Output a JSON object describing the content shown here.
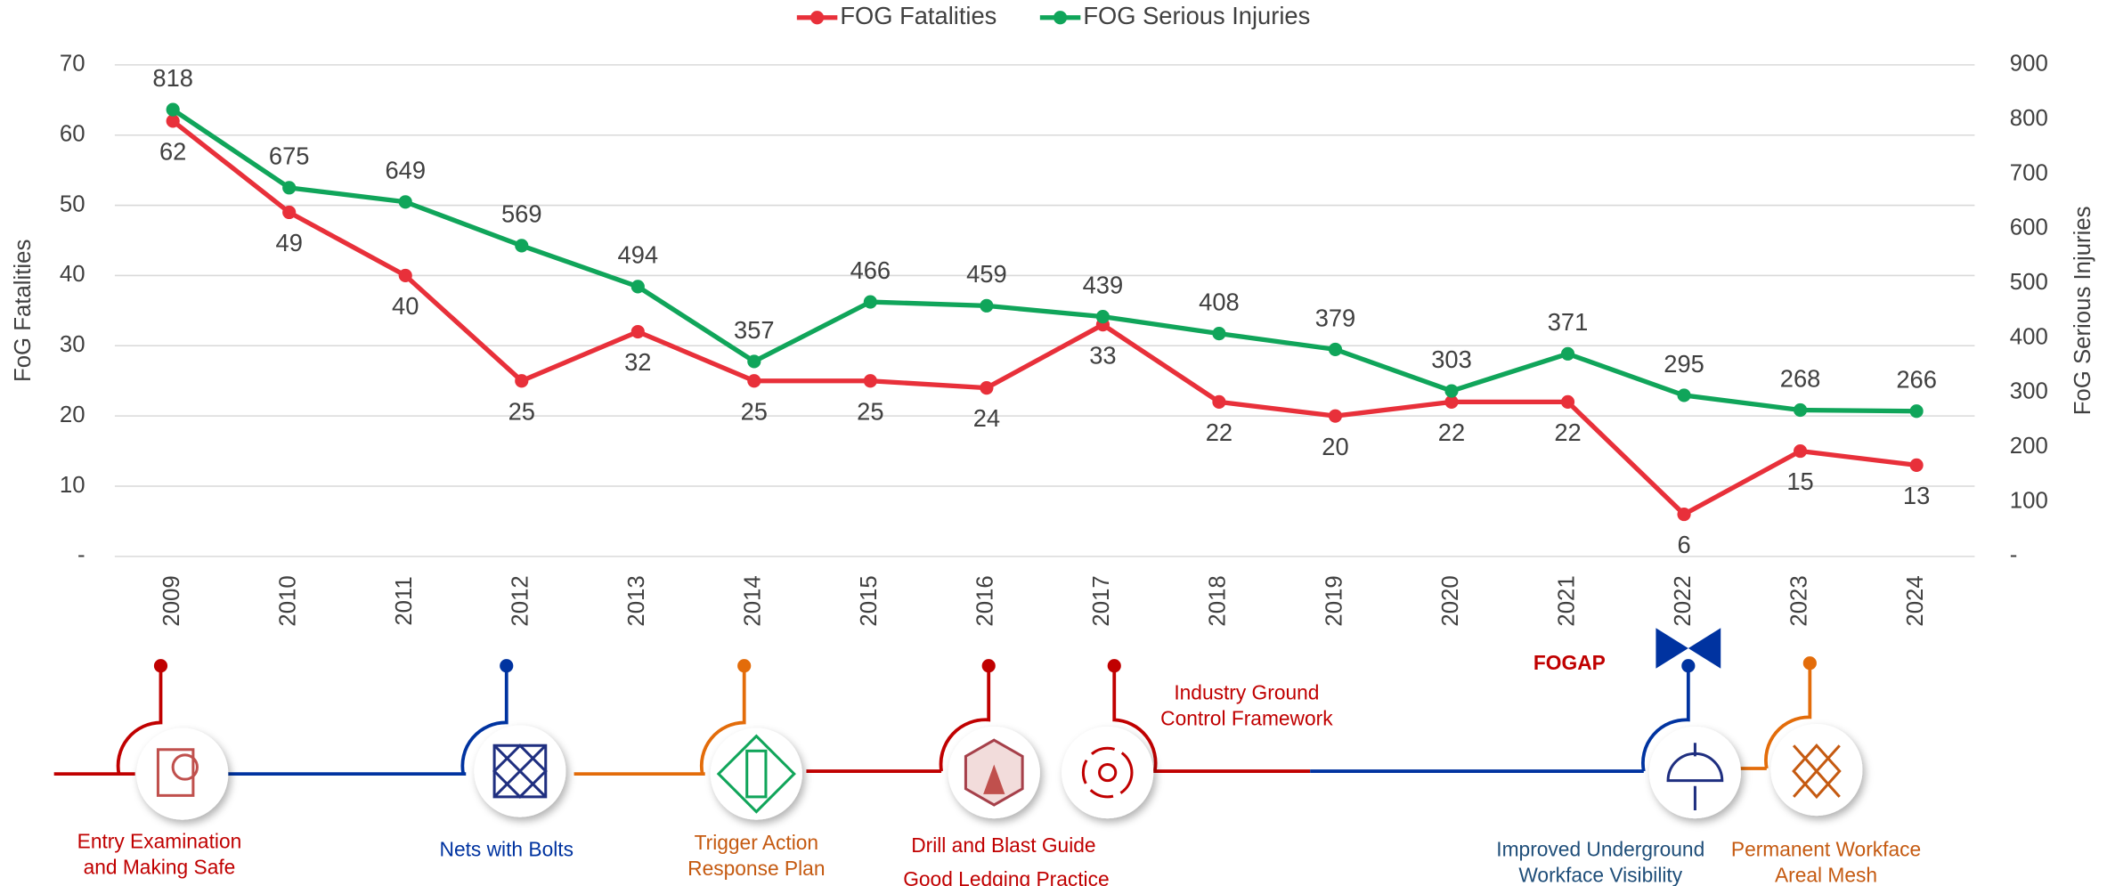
{
  "chart_data": {
    "type": "line",
    "legend": "top",
    "grid": true,
    "categories": [
      "2009",
      "2010",
      "2011",
      "2012",
      "2013",
      "2014",
      "2015",
      "2016",
      "2017",
      "2018",
      "2019",
      "2020",
      "2021",
      "2022",
      "2023",
      "2024"
    ],
    "series": [
      {
        "name": "FOG Fatalities",
        "color": "#e8303a",
        "axis": "y",
        "values": [
          62,
          49,
          40,
          25,
          32,
          25,
          25,
          24,
          33,
          22,
          20,
          22,
          22,
          6,
          15,
          13
        ]
      },
      {
        "name": "FOG Serious Injuries",
        "color": "#10a55a",
        "axis": "y2",
        "values": [
          818,
          675,
          649,
          569,
          494,
          357,
          466,
          459,
          439,
          408,
          379,
          303,
          371,
          295,
          268,
          266
        ]
      }
    ],
    "ylabel": "FoG Fatalities",
    "y2label": "FoG Serious Injuries",
    "ylim": [
      0,
      70
    ],
    "yticks": [
      {
        "value": 0,
        "label": "-"
      },
      10,
      20,
      30,
      40,
      50,
      60,
      70
    ],
    "y2lim": [
      0,
      900
    ],
    "y2ticks": [
      {
        "value": 0,
        "label": "-"
      },
      100,
      200,
      300,
      400,
      500,
      600,
      700,
      800,
      900
    ],
    "milestones": [
      {
        "lines": [
          "Entry Examination",
          "and Making Safe"
        ],
        "color": "#c00000"
      },
      {
        "lines": [
          "Nets with Bolts"
        ],
        "color": "#0033a0"
      },
      {
        "lines": [
          "Trigger Action",
          "Response Plan"
        ],
        "color": "#c55a11"
      },
      {
        "lines": [
          "Drill and Blast Guide"
        ],
        "color": "#c00000"
      },
      {
        "lines": [
          "Good Ledging Practice"
        ],
        "color": "#c00000"
      },
      {
        "lines": [
          "Industry Ground",
          "Control Framework"
        ],
        "color": "#c00000"
      },
      {
        "lines": [
          "Improved Underground",
          "Workface Visibility"
        ],
        "color": "#1f4e79"
      },
      {
        "lines": [
          "Permanent Workface",
          "Areal Mesh"
        ],
        "color": "#c55a11"
      }
    ],
    "annotation": "FOGAP"
  }
}
